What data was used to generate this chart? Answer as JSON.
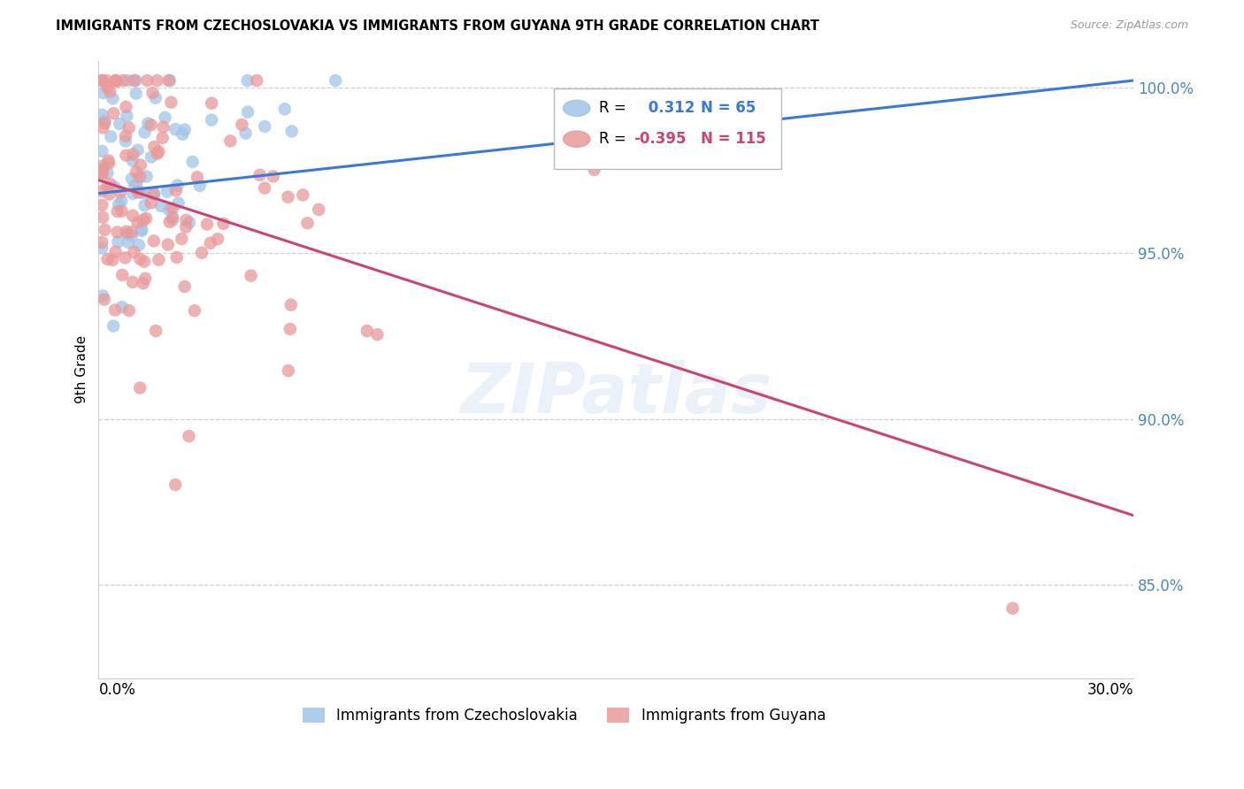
{
  "title": "IMMIGRANTS FROM CZECHOSLOVAKIA VS IMMIGRANTS FROM GUYANA 9TH GRADE CORRELATION CHART",
  "source": "Source: ZipAtlas.com",
  "ylabel": "9th Grade",
  "xmin": 0.0,
  "xmax": 0.3,
  "ymin": 0.822,
  "ymax": 1.008,
  "blue_R": 0.312,
  "blue_N": 65,
  "pink_R": -0.395,
  "pink_N": 115,
  "blue_color": "#9fc5e8",
  "pink_color": "#ea9999",
  "blue_line_color": "#3c78d8",
  "pink_line_color": "#cc4477",
  "legend_label_blue": "Immigrants from Czechoslovakia",
  "legend_label_pink": "Immigrants from Guyana",
  "watermark": "ZIPatlas",
  "blue_line_x0": 0.0,
  "blue_line_y0": 0.968,
  "blue_line_x1": 0.3,
  "blue_line_y1": 1.002,
  "pink_line_x0": 0.0,
  "pink_line_y0": 0.972,
  "pink_line_x1": 0.3,
  "pink_line_y1": 0.871
}
